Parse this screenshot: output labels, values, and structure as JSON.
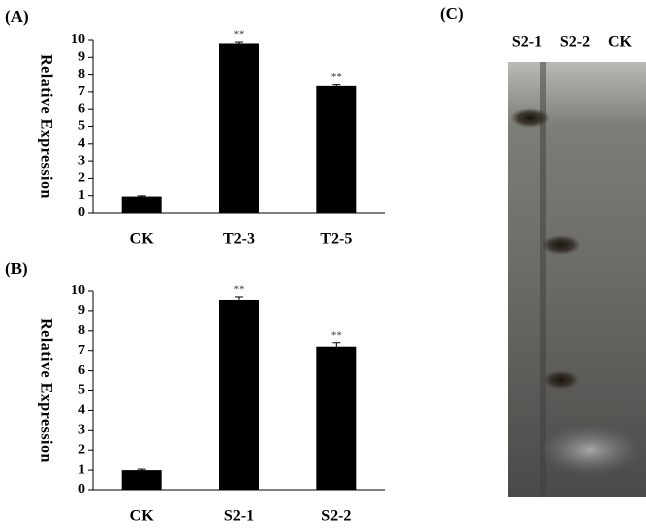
{
  "chart_data": [
    {
      "type": "bar",
      "panel_label": "(A)",
      "y_label": "Relative Expression",
      "categories": [
        "CK",
        "T2-3",
        "T2-5"
      ],
      "values": [
        0.95,
        9.8,
        7.35
      ],
      "errors": [
        0.04,
        0.08,
        0.07
      ],
      "significance": [
        null,
        "**",
        "**"
      ],
      "color": "#000000",
      "ylim": [
        0,
        10
      ],
      "yticks": [
        0,
        1,
        2,
        3,
        4,
        5,
        6,
        7,
        8,
        9,
        10
      ]
    },
    {
      "type": "bar",
      "panel_label": "(B)",
      "y_label": "Relative Expression",
      "categories": [
        "CK",
        "S2-1",
        "S2-2"
      ],
      "values": [
        1.0,
        9.55,
        7.2
      ],
      "errors": [
        0.05,
        0.15,
        0.2
      ],
      "significance": [
        null,
        "**",
        "**"
      ],
      "color": "#000000",
      "ylim": [
        0,
        10
      ],
      "yticks": [
        0,
        1,
        2,
        3,
        4,
        5,
        6,
        7,
        8,
        9,
        10
      ]
    }
  ],
  "gel": {
    "panel_label": "(C)",
    "lanes": [
      "S2-1",
      "S2-2",
      "CK"
    ]
  }
}
